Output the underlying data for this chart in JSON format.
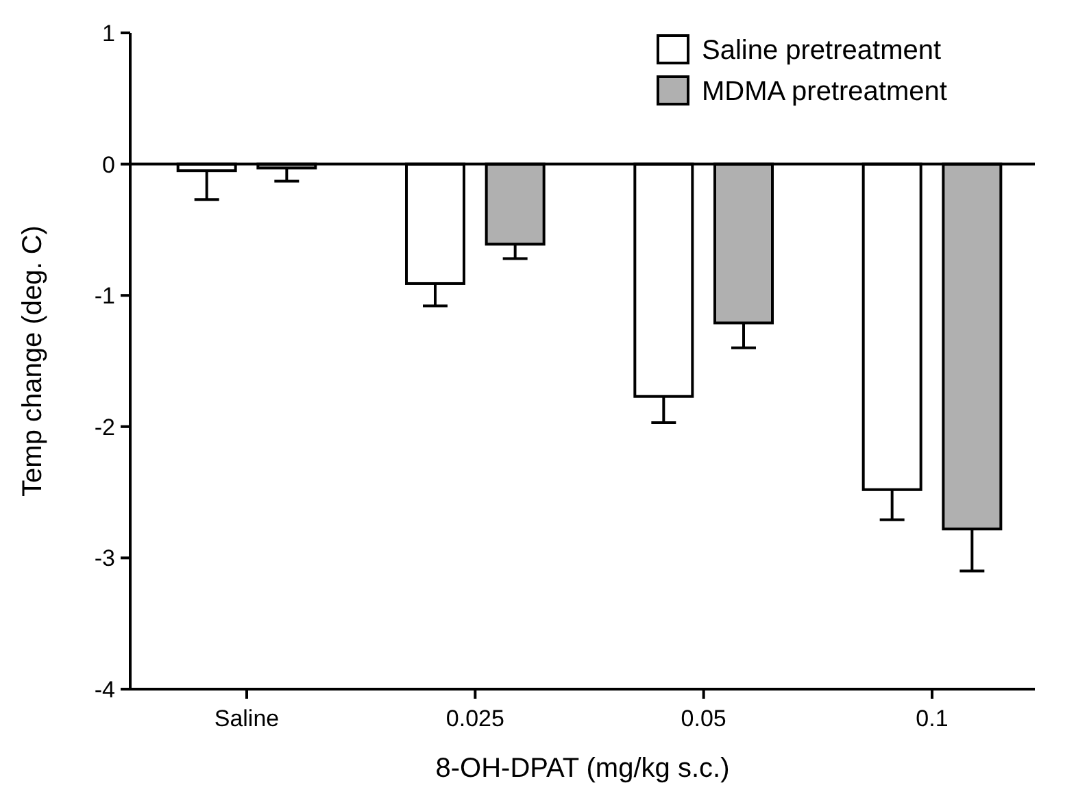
{
  "chart_data": {
    "type": "bar",
    "xlabel": "8-OH-DPAT (mg/kg s.c.)",
    "ylabel": "Temp change (deg. C)",
    "categories": [
      "Saline",
      "0.025",
      "0.05",
      "0.1"
    ],
    "series": [
      {
        "name": "Saline pretreatment",
        "color": "#ffffff",
        "values": [
          -0.05,
          -0.91,
          -1.77,
          -2.48
        ],
        "errors": [
          [
            -0.27,
            -0.05
          ],
          [
            -1.08,
            -0.91
          ],
          [
            -1.97,
            -1.77
          ],
          [
            -2.71,
            -2.48
          ]
        ]
      },
      {
        "name": "MDMA pretreatment",
        "color": "#b0b0b0",
        "values": [
          -0.03,
          -0.61,
          -1.21,
          -2.78
        ],
        "errors": [
          [
            -0.13,
            -0.03
          ],
          [
            -0.72,
            -0.61
          ],
          [
            -1.4,
            -1.21
          ],
          [
            -3.1,
            -2.78
          ]
        ]
      }
    ],
    "ylim": [
      -4,
      1
    ],
    "yticks": [
      -4,
      -3,
      -2,
      -1,
      0,
      1
    ],
    "ref_lines": [
      {
        "axis": "y",
        "value": 0
      }
    ],
    "legend": "top right",
    "grid": false
  }
}
